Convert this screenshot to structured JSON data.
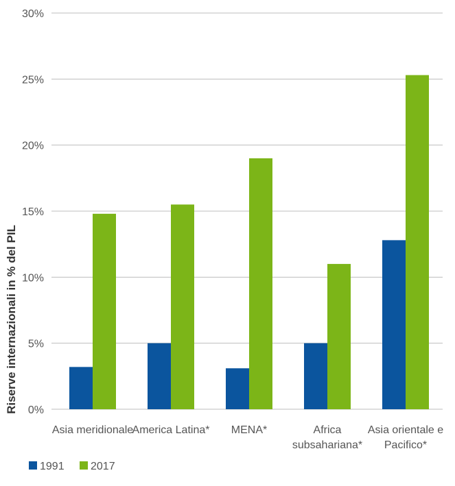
{
  "chart_data": {
    "type": "bar",
    "categories": [
      [
        "Asia meridionale"
      ],
      [
        "America Latina*"
      ],
      [
        "MENA*"
      ],
      [
        "Africa",
        "subsahariana*"
      ],
      [
        "Asia orientale e",
        "Pacifico*"
      ]
    ],
    "series": [
      {
        "name": "1991",
        "color": "#0b559e",
        "values": [
          3.2,
          5.0,
          3.1,
          5.0,
          12.8
        ]
      },
      {
        "name": "2017",
        "color": "#7cb518",
        "values": [
          14.8,
          15.5,
          19.0,
          11.0,
          25.3
        ]
      }
    ],
    "ylabel": "Riserve internazionali in % del PIL",
    "ylim": [
      0,
      30
    ],
    "yticks": [
      0,
      5,
      10,
      15,
      20,
      25,
      30
    ],
    "ytick_labels": [
      "0%",
      "5%",
      "10%",
      "15%",
      "20%",
      "25%",
      "30%"
    ],
    "grid": true,
    "legend_position": "bottom-left"
  }
}
